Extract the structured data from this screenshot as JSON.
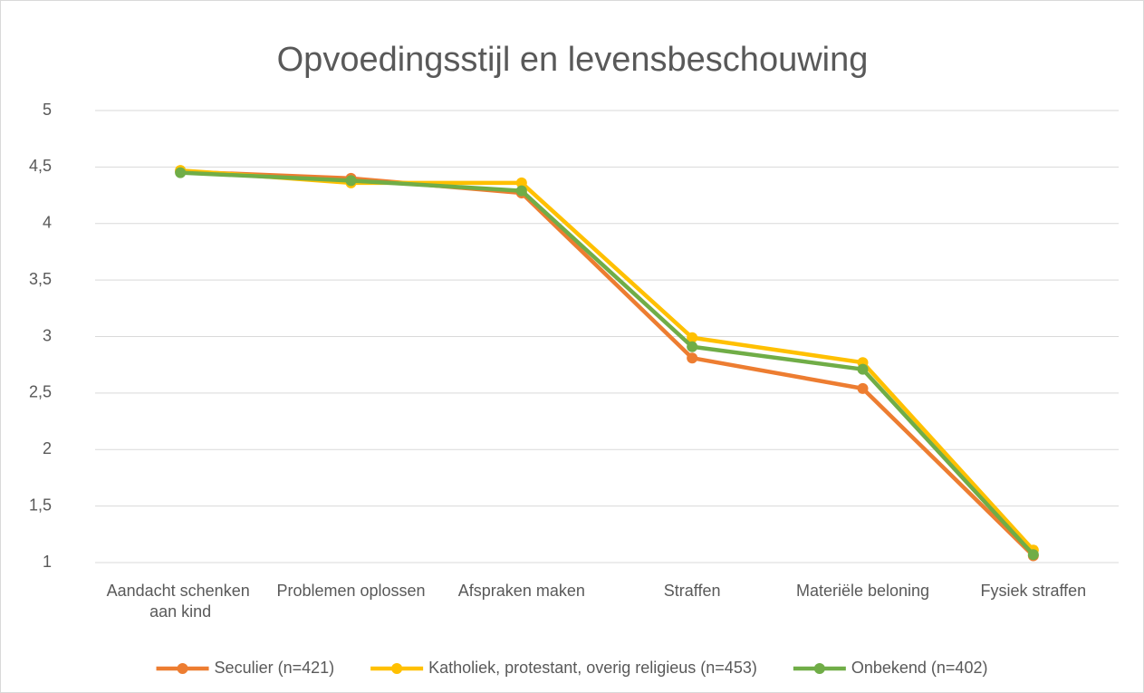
{
  "chart_data": {
    "type": "line",
    "title": "Opvoedingsstijl en levensbeschouwing",
    "categories": [
      "Aandacht schenken aan kind",
      "Problemen oplossen",
      "Afspraken maken",
      "Straffen",
      "Materiële beloning",
      "Fysiek straffen"
    ],
    "series": [
      {
        "name": "Seculier (n=421)",
        "color": "#ed7d31",
        "values": [
          4.46,
          4.4,
          4.27,
          2.81,
          2.54,
          1.06
        ]
      },
      {
        "name": "Katholiek, protestant, overig religieus (n=453)",
        "color": "#ffc000",
        "values": [
          4.47,
          4.36,
          4.36,
          2.99,
          2.77,
          1.11
        ]
      },
      {
        "name": "Onbekend (n=402)",
        "color": "#70ad47",
        "values": [
          4.45,
          4.38,
          4.29,
          2.91,
          2.71,
          1.07
        ]
      }
    ],
    "ylim": [
      1,
      5
    ],
    "yticks": [
      1,
      {
        "value": 1.5,
        "label": "1,5"
      },
      2,
      {
        "value": 2.5,
        "label": "2,5"
      },
      3,
      {
        "value": 3.5,
        "label": "3,5"
      },
      4,
      {
        "value": 4.5,
        "label": "4,5"
      },
      5
    ],
    "grid": true,
    "legend": "bottom"
  }
}
